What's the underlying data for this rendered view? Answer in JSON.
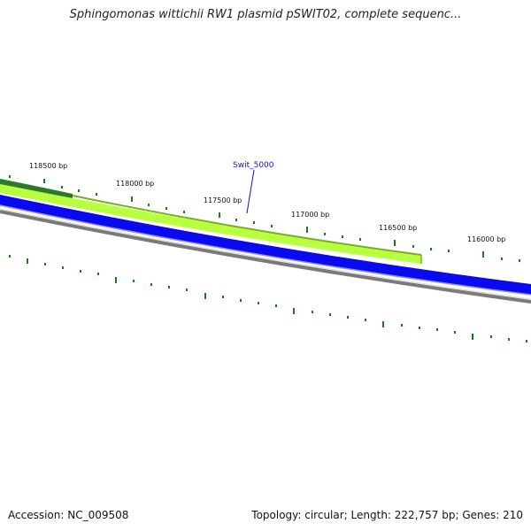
{
  "title": "Sphingomonas wittichii RW1 plasmid pSWIT02, complete sequenc...",
  "gene_label": "Swit_5000",
  "footer": {
    "accession": "Accession: NC_009508",
    "info": "Topology: circular; Length: 222,757 bp; Genes: 210"
  },
  "scale_labels": [
    "118500 bp",
    "118000 bp",
    "117500 bp",
    "117000 bp",
    "116500 bp",
    "116000 bp"
  ],
  "colors": {
    "outer_ticks": "#1a7a1a",
    "inner_ticks": "#1a7a1a",
    "gene_light_green": "#b8ff40",
    "gene_light_green_border": "#7ab020",
    "gene_dark_green": "#2a7a2a",
    "gene_blue": "#0a0aee",
    "backbone_gray": "#7a7a7a",
    "label_line": "#1010c0"
  }
}
